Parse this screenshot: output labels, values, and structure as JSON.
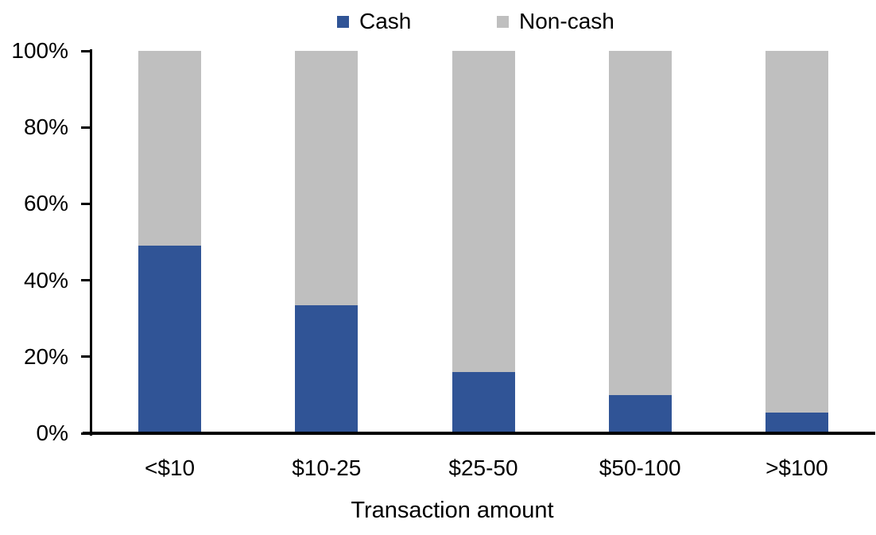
{
  "background": "#FFFFFF",
  "chart_data": {
    "type": "bar",
    "stacked": true,
    "stack_unit": "percent",
    "title": "",
    "xlabel": "Transaction amount",
    "ylabel": "",
    "categories": [
      "<$10",
      "$10-25",
      "$25-50",
      "$50-100",
      ">$100"
    ],
    "series": [
      {
        "name": "Cash",
        "color": "#305496",
        "values": [
          49,
          33.5,
          16,
          10,
          5.5
        ]
      },
      {
        "name": "Non-cash",
        "color": "#BFBFBF",
        "values": [
          51,
          66.5,
          84,
          90,
          94.5
        ]
      }
    ],
    "y_ticks": [
      "0%",
      "20%",
      "40%",
      "60%",
      "80%",
      "100%"
    ],
    "ylim": [
      0,
      100
    ],
    "legend_position": "top",
    "grid": false,
    "axis_color": "#000000",
    "text_color": "#000000"
  }
}
